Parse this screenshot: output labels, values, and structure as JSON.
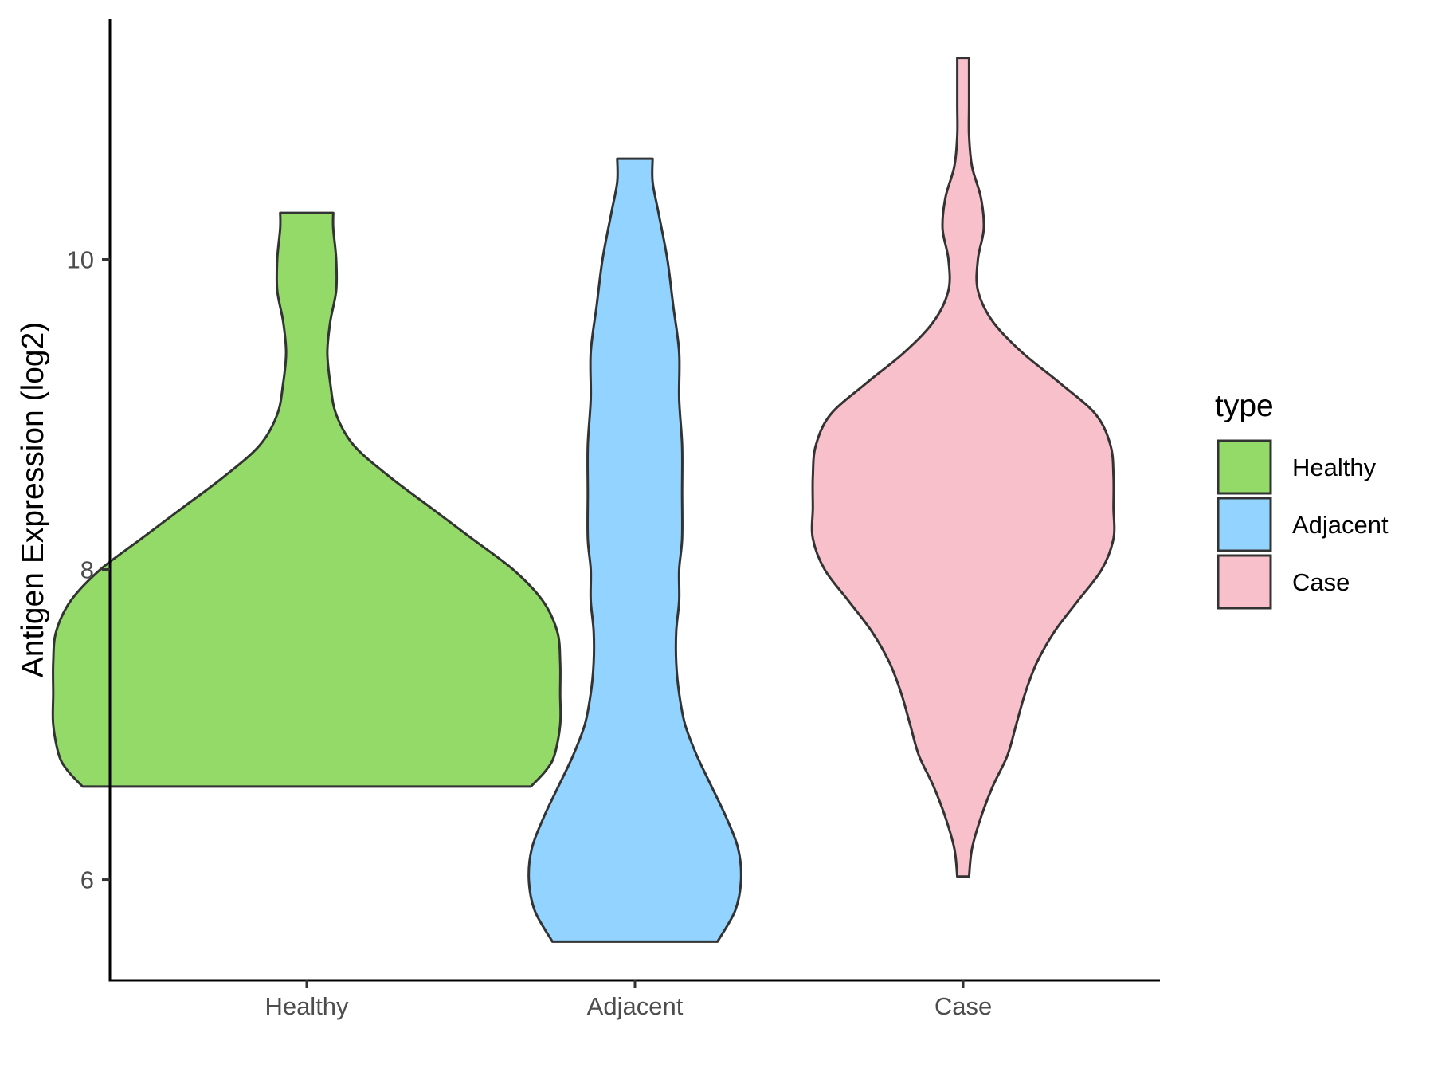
{
  "chart_data": {
    "type": "violin",
    "title": "",
    "xlabel": "",
    "ylabel": "Antigen Expression (log2)",
    "ylim": [
      5.35,
      11.55
    ],
    "y_ticks": [
      6,
      8,
      10
    ],
    "categories": [
      "Healthy",
      "Adjacent",
      "Case"
    ],
    "grid": false,
    "legend": {
      "title": "type",
      "placement": "right",
      "entries": [
        "Healthy",
        "Adjacent",
        "Case"
      ]
    },
    "colors": {
      "Healthy": "#93DA69",
      "Adjacent": "#93D3FF",
      "Case": "#F8C0CB",
      "outline": "#333333"
    },
    "series": [
      {
        "category": "Healthy",
        "min": 6.6,
        "max": 10.3,
        "density": [
          [
            6.6,
            0.76
          ],
          [
            6.7,
            0.81
          ],
          [
            6.8,
            0.84
          ],
          [
            7.0,
            0.86
          ],
          [
            7.2,
            0.86
          ],
          [
            7.4,
            0.86
          ],
          [
            7.6,
            0.85
          ],
          [
            7.8,
            0.8
          ],
          [
            8.0,
            0.7
          ],
          [
            8.2,
            0.56
          ],
          [
            8.4,
            0.42
          ],
          [
            8.6,
            0.28
          ],
          [
            8.8,
            0.16
          ],
          [
            9.0,
            0.1
          ],
          [
            9.2,
            0.08
          ],
          [
            9.4,
            0.07
          ],
          [
            9.6,
            0.08
          ],
          [
            9.8,
            0.1
          ],
          [
            10.0,
            0.1
          ],
          [
            10.2,
            0.09
          ],
          [
            10.3,
            0.09
          ]
        ]
      },
      {
        "category": "Adjacent",
        "min": 5.6,
        "max": 10.65,
        "density": [
          [
            5.6,
            0.28
          ],
          [
            5.8,
            0.34
          ],
          [
            6.0,
            0.36
          ],
          [
            6.2,
            0.35
          ],
          [
            6.4,
            0.31
          ],
          [
            6.6,
            0.26
          ],
          [
            6.8,
            0.21
          ],
          [
            7.0,
            0.17
          ],
          [
            7.2,
            0.15
          ],
          [
            7.4,
            0.14
          ],
          [
            7.6,
            0.14
          ],
          [
            7.8,
            0.15
          ],
          [
            8.0,
            0.15
          ],
          [
            8.2,
            0.16
          ],
          [
            8.5,
            0.16
          ],
          [
            8.8,
            0.16
          ],
          [
            9.1,
            0.15
          ],
          [
            9.4,
            0.15
          ],
          [
            9.7,
            0.13
          ],
          [
            10.0,
            0.11
          ],
          [
            10.3,
            0.08
          ],
          [
            10.5,
            0.06
          ],
          [
            10.65,
            0.06
          ]
        ]
      },
      {
        "category": "Case",
        "min": 6.02,
        "max": 11.3,
        "density": [
          [
            6.02,
            0.02
          ],
          [
            6.2,
            0.03
          ],
          [
            6.4,
            0.06
          ],
          [
            6.6,
            0.1
          ],
          [
            6.8,
            0.15
          ],
          [
            7.0,
            0.18
          ],
          [
            7.2,
            0.21
          ],
          [
            7.4,
            0.25
          ],
          [
            7.6,
            0.31
          ],
          [
            7.8,
            0.39
          ],
          [
            8.0,
            0.47
          ],
          [
            8.2,
            0.51
          ],
          [
            8.4,
            0.51
          ],
          [
            8.6,
            0.51
          ],
          [
            8.8,
            0.5
          ],
          [
            9.0,
            0.45
          ],
          [
            9.2,
            0.33
          ],
          [
            9.4,
            0.2
          ],
          [
            9.6,
            0.1
          ],
          [
            9.8,
            0.05
          ],
          [
            10.0,
            0.05
          ],
          [
            10.2,
            0.07
          ],
          [
            10.4,
            0.06
          ],
          [
            10.6,
            0.03
          ],
          [
            10.8,
            0.02
          ],
          [
            11.0,
            0.02
          ],
          [
            11.3,
            0.02
          ]
        ]
      }
    ]
  }
}
